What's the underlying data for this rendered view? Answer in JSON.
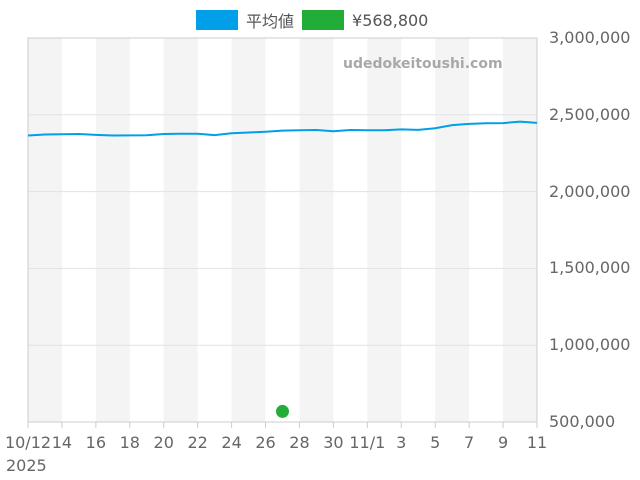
{
  "legend": {
    "avg_label": "平均値",
    "avg_color": "#009fe8",
    "price_label": "¥568,800",
    "price_color": "#22ac38"
  },
  "watermark": "udedokeitoushi.com",
  "x_year_label": "2025",
  "chart_data": {
    "type": "line",
    "title": "",
    "xlabel": "",
    "ylabel": "",
    "y_axis_side": "right",
    "ylim": [
      500000,
      3000000
    ],
    "yticks": [
      "3,000,000",
      "2,500,000",
      "2,000,000",
      "1,500,000",
      "1,000,000",
      "500,000"
    ],
    "x": [
      "10/12",
      "10/13",
      "10/14",
      "10/15",
      "10/16",
      "10/17",
      "10/18",
      "10/19",
      "10/20",
      "10/21",
      "10/22",
      "10/23",
      "10/24",
      "10/25",
      "10/26",
      "10/27",
      "10/28",
      "10/29",
      "10/30",
      "10/31",
      "11/1",
      "11/2",
      "11/3",
      "11/4",
      "11/5",
      "11/6",
      "11/7",
      "11/8",
      "11/9",
      "11/10",
      "11/11"
    ],
    "xticks": [
      "10/12",
      "14",
      "16",
      "18",
      "20",
      "22",
      "24",
      "26",
      "28",
      "30",
      "11/1",
      "3",
      "5",
      "7",
      "9",
      "11"
    ],
    "grid": true,
    "alternating_bands": true,
    "series": [
      {
        "name": "平均値",
        "color": "#009fe8",
        "values": [
          2365000,
          2372000,
          2374000,
          2375000,
          2369000,
          2365000,
          2366000,
          2367000,
          2375000,
          2376000,
          2377000,
          2368000,
          2380000,
          2385000,
          2390000,
          2397000,
          2400000,
          2401000,
          2393000,
          2401000,
          2400000,
          2400000,
          2405000,
          2402000,
          2413000,
          2433000,
          2441000,
          2445000,
          2446000,
          2456000,
          2447000
        ]
      },
      {
        "name": "¥568,800",
        "color": "#22ac38",
        "points": [
          {
            "x": "10/27",
            "y": 568800
          }
        ]
      }
    ]
  }
}
